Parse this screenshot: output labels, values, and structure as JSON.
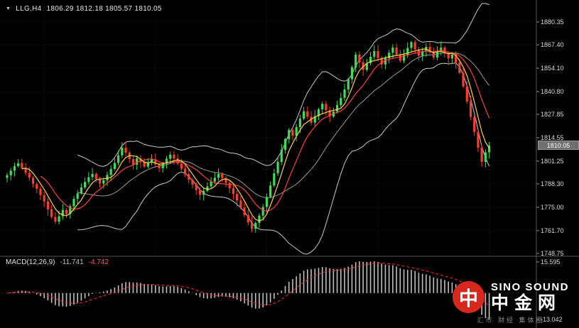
{
  "header": {
    "collapse_icon": "▼",
    "symbol": "LLG,H4",
    "ohlc_text": "1806.29 1812.18 1805.57 1810.05"
  },
  "price_axis": {
    "labels": [
      "1880.35",
      "1867.40",
      "1854.10",
      "1840.80",
      "1827.85",
      "1814.55",
      "1801.25",
      "1788.30",
      "1775.00",
      "1761.70",
      "1748.75"
    ],
    "current_price": "1810.05"
  },
  "macd": {
    "name": "MACD(12,26,9)",
    "main_value": "-11.741",
    "signal_value": "-4.742",
    "axis_top": "15.595",
    "axis_bottom": "-13.042"
  },
  "watermark": {
    "brand_en": "SINO SOUND",
    "brand_cn": "中金网",
    "logo_glyph": "中",
    "tagline": "汇市 财经 集体圈"
  },
  "chart_data": {
    "type": "candlestick",
    "symbol": "LLG",
    "timeframe": "H4",
    "title": "LLG,H4",
    "current_ohlc": {
      "open": 1806.29,
      "high": 1812.18,
      "low": 1805.57,
      "close": 1810.05
    },
    "y_ticks": [
      1880.35,
      1867.4,
      1854.1,
      1840.8,
      1827.85,
      1814.55,
      1801.25,
      1788.3,
      1775.0,
      1761.7,
      1748.75
    ],
    "ylim": [
      1748.75,
      1880.35
    ],
    "closes": [
      1793.2,
      1795.8,
      1798.4,
      1800.1,
      1797.3,
      1794.6,
      1791.8,
      1788.2,
      1785.5,
      1781.9,
      1778.3,
      1773.8,
      1769.5,
      1766.8,
      1769.9,
      1773.5,
      1771.2,
      1775.6,
      1779.8,
      1782.9,
      1786.3,
      1789.4,
      1792.1,
      1794.0,
      1791.2,
      1788.5,
      1790.3,
      1793.4,
      1796.8,
      1800.2,
      1804.5,
      1808.9,
      1806.1,
      1802.4,
      1799.2,
      1802.8,
      1800.6,
      1798.1,
      1800.3,
      1802.2,
      1799.4,
      1797.2,
      1799.8,
      1802.6,
      1804.9,
      1802.7,
      1799.8,
      1796.9,
      1793.8,
      1790.7,
      1787.9,
      1784.8,
      1782.1,
      1784.3,
      1786.9,
      1789.6,
      1791.8,
      1793.9,
      1791.6,
      1788.9,
      1785.8,
      1782.6,
      1778.9,
      1774.8,
      1770.6,
      1766.4,
      1762.8,
      1766.1,
      1770.3,
      1775.2,
      1780.9,
      1787.4,
      1794.3,
      1800.8,
      1807.6,
      1813.8,
      1818.9,
      1815.7,
      1820.6,
      1825.4,
      1829.6,
      1826.5,
      1823.1,
      1826.8,
      1830.7,
      1833.8,
      1830.2,
      1826.6,
      1829.4,
      1833.1,
      1837.2,
      1842.0,
      1847.8,
      1854.6,
      1861.8,
      1857.4,
      1853.1,
      1856.9,
      1860.6,
      1863.8,
      1859.9,
      1856.2,
      1859.8,
      1862.9,
      1865.8,
      1861.9,
      1858.3,
      1861.8,
      1865.6,
      1868.9,
      1864.8,
      1861.2,
      1863.9,
      1866.2,
      1863.1,
      1860.2,
      1863.4,
      1865.8,
      1862.4,
      1859.6,
      1861.8,
      1857.2,
      1851.4,
      1843.8,
      1835.2,
      1826.4,
      1817.8,
      1808.9,
      1800.8,
      1806.2,
      1810.05
    ],
    "indicators": {
      "bollinger": {
        "period": 20,
        "deviation": 2,
        "band_color": "#c9c9c9",
        "mid_color": "#9a9a9a"
      },
      "ma_fast": {
        "period": 5,
        "color": "#ffd24a"
      },
      "ma_slow": {
        "period": 10,
        "color": "#ff4040"
      },
      "macd": {
        "fast": 12,
        "slow": 26,
        "signal": 9,
        "hist_color": "#c0c0c0",
        "signal_color": "#ff2a2a",
        "main": -11.741,
        "signal_value": -4.742,
        "scale_max": 15.595,
        "scale_min": -13.042
      }
    },
    "colors": {
      "background": "#000000",
      "up": "#3ddc5a",
      "down": "#ff3b30",
      "grid": "#262626",
      "axis_text": "#d9d9d9"
    }
  }
}
